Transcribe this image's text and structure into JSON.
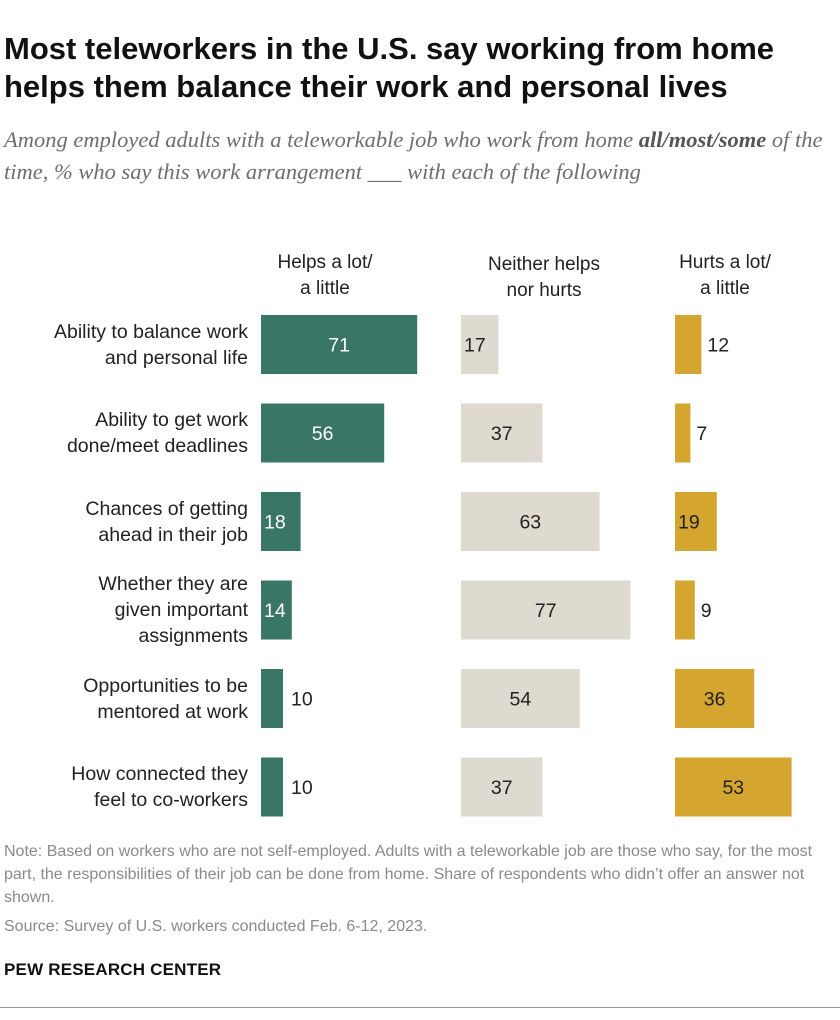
{
  "title": "Most teleworkers in the U.S. say working from home helps them balance their work and personal lives",
  "subtitle": {
    "part1": "Among employed adults with a teleworkable job who work from home ",
    "emphasis": "all/most/some",
    "part2": " of the time, % who say this work arrangement ___ with each of the following"
  },
  "chart_data": {
    "type": "bar",
    "orientation": "horizontal",
    "layout": "small-multiples",
    "categories": [
      [
        "Ability to balance work",
        "and personal life"
      ],
      [
        "Ability to get work",
        "done/meet deadlines"
      ],
      [
        "Chances of getting",
        "ahead in their job"
      ],
      [
        "Whether they are",
        "given important",
        "assignments"
      ],
      [
        "Opportunities to be",
        "mentored at work"
      ],
      [
        "How connected they",
        "feel to co-workers"
      ]
    ],
    "series": [
      {
        "name": [
          "Helps a lot/",
          "a little"
        ],
        "color": "#3a7666",
        "values": [
          71,
          56,
          18,
          14,
          10,
          10
        ]
      },
      {
        "name": [
          "Neither helps",
          "nor hurts"
        ],
        "color": "#dedad0",
        "values": [
          17,
          37,
          63,
          77,
          54,
          37
        ]
      },
      {
        "name": [
          "Hurts a lot/",
          "a little"
        ],
        "color": "#d4a52f",
        "values": [
          12,
          7,
          19,
          9,
          36,
          53
        ]
      }
    ]
  },
  "note": "Note: Based on workers who are not self-employed. Adults with a teleworkable job are those who say, for the most part, the responsibilities of their job can be done from home. Share of respondents who didn’t offer an answer not shown.",
  "source": "Source: Survey of U.S. workers conducted Feb. 6-12, 2023.",
  "brand": "PEW RESEARCH CENTER"
}
